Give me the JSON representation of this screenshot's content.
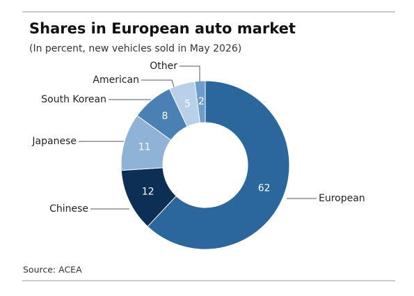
{
  "chart_data": {
    "type": "pie",
    "donut": true,
    "title": "Shares in European auto market",
    "subtitle": "(In percent, new vehicles sold in May 2026)",
    "source": "Source: ACEA",
    "categories": [
      "European",
      "Chinese",
      "Japanese",
      "South Korean",
      "American",
      "Other"
    ],
    "values": [
      62,
      12,
      11,
      8,
      5,
      2
    ],
    "colors": [
      "#2b679c",
      "#0e2f55",
      "#8fb3d6",
      "#4b80b4",
      "#b9d1e8",
      "#6f9dca"
    ]
  }
}
